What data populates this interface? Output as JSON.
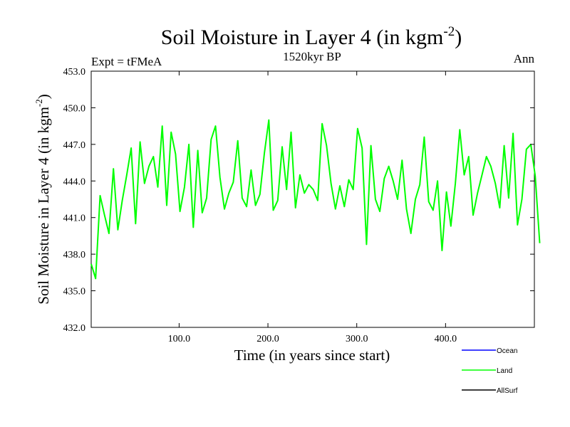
{
  "chart_data": {
    "type": "line",
    "title": "Soil Moisture in Layer 4 (in kgm",
    "title_superscript": "-2",
    "title_close": ")",
    "subtitle": "1520kyr BP",
    "left_label": "Expt = tFMeA",
    "right_label": "Ann",
    "xlabel": "Time (in years since start)",
    "ylabel": "Soil Moisture in Layer 4 (in kgm",
    "ylabel_superscript": "-2",
    "ylabel_close": ")",
    "xlim": [
      1,
      500
    ],
    "ylim": [
      432.0,
      453.0
    ],
    "x_ticks": [
      100,
      200,
      300,
      400
    ],
    "x_tick_labels": [
      "100.0",
      "200.0",
      "300.0",
      "400.0"
    ],
    "y_ticks": [
      432,
      435,
      438,
      441,
      444,
      447,
      450,
      453
    ],
    "y_tick_labels": [
      "432.0",
      "435.0",
      "438.0",
      "441.0",
      "444.0",
      "447.0",
      "450.0",
      "453.0"
    ],
    "legend": [
      {
        "name": "Ocean",
        "color": "#0000ff"
      },
      {
        "name": "Land",
        "color": "#00ff00"
      },
      {
        "name": "AllSurf",
        "color": "#000000"
      }
    ],
    "series": [
      {
        "name": "Land",
        "color": "#00ff00",
        "x_start": 1,
        "x_step": 5,
        "values": [
          437.2,
          436.0,
          442.8,
          441.2,
          439.7,
          445.0,
          440.0,
          442.4,
          444.5,
          446.7,
          440.5,
          447.2,
          443.8,
          445.2,
          446.0,
          443.5,
          448.5,
          442.0,
          448.0,
          446.2,
          441.5,
          443.5,
          447.0,
          440.2,
          446.5,
          441.4,
          442.6,
          447.4,
          448.5,
          444.3,
          441.7,
          443.0,
          443.9,
          447.3,
          442.6,
          441.9,
          444.9,
          442.0,
          442.9,
          446.3,
          449.0,
          441.6,
          442.4,
          446.8,
          443.3,
          448.0,
          441.8,
          444.5,
          443.0,
          443.7,
          443.3,
          442.4,
          448.7,
          446.9,
          443.8,
          441.7,
          443.6,
          441.9,
          444.1,
          443.3,
          448.3,
          446.7,
          438.8,
          446.9,
          442.5,
          441.5,
          444.2,
          445.2,
          444.0,
          442.5,
          445.7,
          441.7,
          439.7,
          442.5,
          443.7,
          447.6,
          442.3,
          441.6,
          444.0,
          438.3,
          443.1,
          440.3,
          443.8,
          448.2,
          444.5,
          446.0,
          441.2,
          443.0,
          444.5,
          446.0,
          445.2,
          443.8,
          441.8,
          446.9,
          442.6,
          447.9,
          440.4,
          442.5,
          446.6,
          447.0,
          444.4,
          438.9
        ]
      },
      {
        "name": "Ocean",
        "color": "#0000ff",
        "values": []
      },
      {
        "name": "AllSurf",
        "color": "#000000",
        "values": []
      }
    ]
  }
}
